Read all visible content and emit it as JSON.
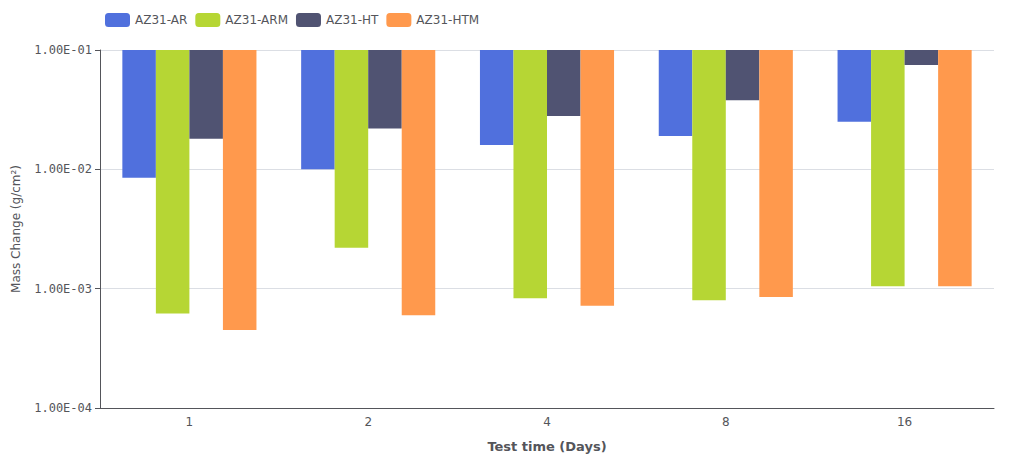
{
  "chart_data": {
    "type": "bar",
    "xlabel": "Test time (Days)",
    "ylabel": "Mass Change (g/cm²)",
    "categories": [
      "1",
      "2",
      "4",
      "8",
      "16"
    ],
    "series": [
      {
        "name": "AZ31-AR",
        "values": [
          0.0085,
          0.01,
          0.016,
          0.019,
          0.025
        ]
      },
      {
        "name": "AZ31-ARM",
        "values": [
          0.00062,
          0.0022,
          0.00083,
          0.0008,
          0.00105
        ]
      },
      {
        "name": "AZ31-HT",
        "values": [
          0.018,
          0.022,
          0.028,
          0.038,
          0.075
        ]
      },
      {
        "name": "AZ31-HTM",
        "values": [
          0.00045,
          0.0006,
          0.00072,
          0.00085,
          0.00105
        ]
      }
    ],
    "log": "y",
    "ylim": [
      0.0001,
      0.1
    ],
    "yticks": [
      {
        "value": 0.0001,
        "label": "1.00E-04"
      },
      {
        "value": 0.001,
        "label": "1.00E-03"
      },
      {
        "value": 0.01,
        "label": "1.00E-02"
      },
      {
        "value": 0.1,
        "label": "1.00E-01"
      }
    ],
    "grid": true,
    "legend": "upper left"
  }
}
